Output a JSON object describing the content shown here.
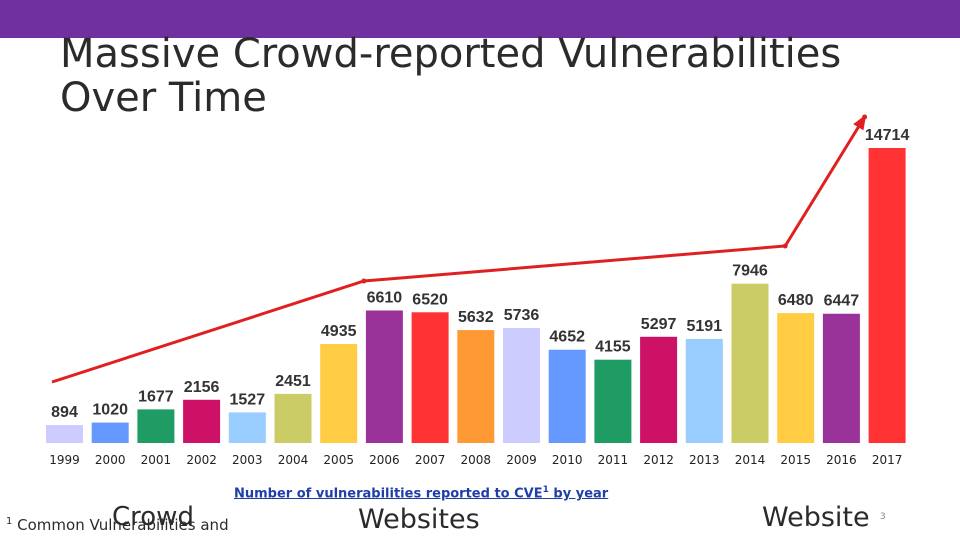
{
  "title": {
    "line1": "Massive Crowd-reported Vulnerabilities",
    "line2": "Over Time"
  },
  "chart_data": {
    "type": "bar",
    "categories": [
      "1999",
      "2000",
      "2001",
      "2002",
      "2003",
      "2004",
      "2005",
      "2006",
      "2007",
      "2008",
      "2009",
      "2010",
      "2011",
      "2012",
      "2013",
      "2014",
      "2015",
      "2016",
      "2017"
    ],
    "values": [
      894,
      1020,
      1677,
      2156,
      1527,
      2451,
      4935,
      6610,
      6520,
      5632,
      5736,
      4652,
      4155,
      5297,
      5191,
      7946,
      6480,
      6447,
      14714
    ],
    "colors": [
      "#ccccff",
      "#6699ff",
      "#1e9c63",
      "#cc1166",
      "#99ccff",
      "#cccc66",
      "#ffcc44",
      "#993399",
      "#ff3333",
      "#ff9933",
      "#ccccff",
      "#6699ff",
      "#1e9c63",
      "#cc1166",
      "#99ccff",
      "#cccc66",
      "#ffcc44",
      "#993399",
      "#ff3333"
    ],
    "ylim": [
      0,
      16000
    ],
    "trend_color": "#e02020",
    "trend_line_years": [
      "1999",
      "2006",
      "2015",
      "2017"
    ]
  },
  "caption": {
    "text": "Number of vulnerabilities reported to CVE",
    "sup": "1",
    "suffix": " by year"
  },
  "footnote": {
    "sup": "1",
    "text": " Common Vulnerabilities and"
  },
  "overlay": {
    "crowd": "Crowd",
    "websites": "Websites",
    "website": "Website"
  },
  "page_number": "3"
}
